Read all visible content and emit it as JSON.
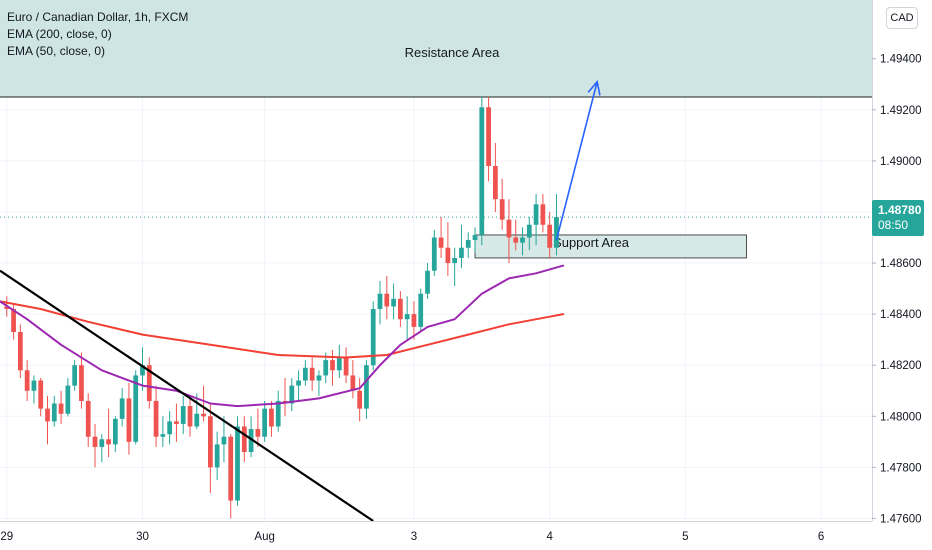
{
  "legend": {
    "symbol": "Euro / Canadian Dollar, 1h, FXCM",
    "ema200": "EMA (200, close, 0)",
    "ema50": "EMA (50, close, 0)"
  },
  "currency_button": "CAD",
  "last_price": {
    "price": "1.48780",
    "countdown": "08:50"
  },
  "colors": {
    "up": "#26a69a",
    "down": "#ef5350",
    "ema200": "#f23f34",
    "ema50": "#9c27b0",
    "zone_fill": "#cfe5e3",
    "trendline": "#000000",
    "arrow": "#2962ff",
    "last_price_line": "#26a69a"
  },
  "chart_data": {
    "type": "candlestick",
    "symbol": "EURCAD",
    "timeframe": "1h",
    "ylim": [
      1.4759,
      1.4963
    ],
    "y_ticks": [
      "1.49400",
      "1.49200",
      "1.49000",
      "1.48800",
      "1.48600",
      "1.48400",
      "1.48200",
      "1.48000",
      "1.47800",
      "1.47600"
    ],
    "y_tick_values": [
      1.494,
      1.492,
      1.49,
      1.488,
      1.486,
      1.484,
      1.482,
      1.48,
      1.478,
      1.476
    ],
    "x_ticks": [
      {
        "label": "29",
        "bar": 0
      },
      {
        "label": "30",
        "bar": 20
      },
      {
        "label": "Aug",
        "bar": 38
      },
      {
        "label": "3",
        "bar": 60
      },
      {
        "label": "4",
        "bar": 80
      },
      {
        "label": "5",
        "bar": 100
      },
      {
        "label": "6",
        "bar": 120
      }
    ],
    "x_range_bars": [
      -1.0,
      127.5
    ],
    "last_price": 1.4878,
    "candles": [
      [
        1.4843,
        1.4847,
        1.4839,
        1.4842
      ],
      [
        1.4842,
        1.4844,
        1.483,
        1.4833
      ],
      [
        1.4833,
        1.4836,
        1.4815,
        1.4818
      ],
      [
        1.4818,
        1.4822,
        1.4806,
        1.481
      ],
      [
        1.481,
        1.4816,
        1.4805,
        1.4814
      ],
      [
        1.4814,
        1.4815,
        1.48,
        1.4803
      ],
      [
        1.4803,
        1.4808,
        1.4789,
        1.4798
      ],
      [
        1.4798,
        1.4808,
        1.4796,
        1.4805
      ],
      [
        1.4805,
        1.481,
        1.4797,
        1.4801
      ],
      [
        1.4801,
        1.4815,
        1.48,
        1.4812
      ],
      [
        1.4812,
        1.4822,
        1.481,
        1.482
      ],
      [
        1.482,
        1.4825,
        1.4803,
        1.4806
      ],
      [
        1.4806,
        1.4809,
        1.4788,
        1.4792
      ],
      [
        1.4792,
        1.4797,
        1.478,
        1.4788
      ],
      [
        1.4788,
        1.4793,
        1.4782,
        1.4791
      ],
      [
        1.4791,
        1.4803,
        1.4784,
        1.4789
      ],
      [
        1.4789,
        1.48,
        1.4786,
        1.4799
      ],
      [
        1.4799,
        1.4811,
        1.4796,
        1.4807
      ],
      [
        1.4807,
        1.4813,
        1.4785,
        1.479
      ],
      [
        1.479,
        1.4818,
        1.4789,
        1.4816
      ],
      [
        1.4816,
        1.4827,
        1.481,
        1.482
      ],
      [
        1.482,
        1.4823,
        1.4803,
        1.4806
      ],
      [
        1.4806,
        1.4812,
        1.4788,
        1.4792
      ],
      [
        1.4792,
        1.48,
        1.4788,
        1.4793
      ],
      [
        1.4793,
        1.4802,
        1.4789,
        1.4798
      ],
      [
        1.4798,
        1.4805,
        1.479,
        1.4797
      ],
      [
        1.4797,
        1.4808,
        1.4793,
        1.4804
      ],
      [
        1.4804,
        1.4807,
        1.4792,
        1.4796
      ],
      [
        1.4796,
        1.4809,
        1.4795,
        1.4801
      ],
      [
        1.4801,
        1.4812,
        1.4798,
        1.48
      ],
      [
        1.48,
        1.4805,
        1.477,
        1.478
      ],
      [
        1.478,
        1.4794,
        1.4775,
        1.4789
      ],
      [
        1.4789,
        1.48,
        1.4782,
        1.4792
      ],
      [
        1.4792,
        1.4793,
        1.476,
        1.4767
      ],
      [
        1.4767,
        1.48,
        1.4765,
        1.4796
      ],
      [
        1.4796,
        1.48,
        1.4782,
        1.4786
      ],
      [
        1.4786,
        1.48,
        1.4784,
        1.4795
      ],
      [
        1.4795,
        1.4803,
        1.4788,
        1.4792
      ],
      [
        1.4792,
        1.4806,
        1.479,
        1.4803
      ],
      [
        1.4803,
        1.4806,
        1.4792,
        1.4796
      ],
      [
        1.4796,
        1.481,
        1.4794,
        1.4806
      ],
      [
        1.4806,
        1.4815,
        1.48,
        1.4805
      ],
      [
        1.4805,
        1.4815,
        1.4802,
        1.4812
      ],
      [
        1.4812,
        1.4818,
        1.4806,
        1.4814
      ],
      [
        1.4814,
        1.4822,
        1.4812,
        1.4819
      ],
      [
        1.4819,
        1.4823,
        1.481,
        1.4814
      ],
      [
        1.4814,
        1.4818,
        1.4808,
        1.4816
      ],
      [
        1.4816,
        1.4825,
        1.4813,
        1.4822
      ],
      [
        1.4822,
        1.4826,
        1.4812,
        1.4818
      ],
      [
        1.4818,
        1.4828,
        1.4815,
        1.4823
      ],
      [
        1.4823,
        1.4827,
        1.4813,
        1.4816
      ],
      [
        1.4816,
        1.4822,
        1.4807,
        1.481
      ],
      [
        1.481,
        1.4815,
        1.4798,
        1.4803
      ],
      [
        1.4803,
        1.4822,
        1.4799,
        1.482
      ],
      [
        1.482,
        1.4845,
        1.4818,
        1.4842
      ],
      [
        1.4842,
        1.4853,
        1.4836,
        1.4848
      ],
      [
        1.4848,
        1.4855,
        1.4838,
        1.4843
      ],
      [
        1.4843,
        1.4852,
        1.4838,
        1.4846
      ],
      [
        1.4846,
        1.4849,
        1.4835,
        1.4838
      ],
      [
        1.4838,
        1.4847,
        1.483,
        1.484
      ],
      [
        1.484,
        1.4845,
        1.483,
        1.4835
      ],
      [
        1.4835,
        1.485,
        1.4833,
        1.4848
      ],
      [
        1.4848,
        1.486,
        1.4846,
        1.4857
      ],
      [
        1.4857,
        1.4873,
        1.4855,
        1.487
      ],
      [
        1.487,
        1.4878,
        1.4862,
        1.4866
      ],
      [
        1.4866,
        1.4876,
        1.4855,
        1.486
      ],
      [
        1.486,
        1.4866,
        1.4851,
        1.4862
      ],
      [
        1.4862,
        1.4875,
        1.4858,
        1.4866
      ],
      [
        1.4866,
        1.4872,
        1.4862,
        1.4869
      ],
      [
        1.4869,
        1.4874,
        1.4864,
        1.4871
      ],
      [
        1.4871,
        1.4925,
        1.4867,
        1.4921
      ],
      [
        1.4921,
        1.4925,
        1.4892,
        1.4898
      ],
      [
        1.4898,
        1.4907,
        1.488,
        1.4885
      ],
      [
        1.4885,
        1.4893,
        1.4873,
        1.4877
      ],
      [
        1.4877,
        1.4885,
        1.486,
        1.487
      ],
      [
        1.487,
        1.4877,
        1.4865,
        1.4868
      ],
      [
        1.4868,
        1.4874,
        1.4863,
        1.487
      ],
      [
        1.487,
        1.4878,
        1.4865,
        1.4875
      ],
      [
        1.4875,
        1.4887,
        1.4867,
        1.4883
      ],
      [
        1.4883,
        1.4887,
        1.4872,
        1.4875
      ],
      [
        1.4875,
        1.488,
        1.4862,
        1.4866
      ],
      [
        1.4866,
        1.4887,
        1.4863,
        1.4878
      ]
    ],
    "series": [
      {
        "name": "EMA (200, close, 0)",
        "color": "#f23f34",
        "points": [
          [
            -1,
            1.4845
          ],
          [
            5,
            1.4842
          ],
          [
            12,
            1.4837
          ],
          [
            20,
            1.4832
          ],
          [
            30,
            1.4828
          ],
          [
            40,
            1.4824
          ],
          [
            50,
            1.4823
          ],
          [
            56,
            1.4824
          ],
          [
            62,
            1.4828
          ],
          [
            68,
            1.4832
          ],
          [
            74,
            1.4836
          ],
          [
            80,
            1.4839
          ],
          [
            82,
            1.484
          ]
        ]
      },
      {
        "name": "EMA (50, close, 0)",
        "color": "#9c27b0",
        "points": [
          [
            -1,
            1.4845
          ],
          [
            3,
            1.4838
          ],
          [
            8,
            1.4828
          ],
          [
            14,
            1.4818
          ],
          [
            20,
            1.4812
          ],
          [
            25,
            1.481
          ],
          [
            30,
            1.4805
          ],
          [
            34,
            1.4804
          ],
          [
            40,
            1.4805
          ],
          [
            46,
            1.4807
          ],
          [
            52,
            1.4811
          ],
          [
            55,
            1.482
          ],
          [
            58,
            1.4828
          ],
          [
            62,
            1.4835
          ],
          [
            66,
            1.4838
          ],
          [
            70,
            1.4848
          ],
          [
            74,
            1.4854
          ],
          [
            78,
            1.4856
          ],
          [
            82,
            1.4859
          ]
        ]
      }
    ],
    "annotations": [
      {
        "type": "zone",
        "label": "Resistance  Area",
        "y1": 1.4963,
        "y2": 1.4925,
        "x1": -1.0,
        "x2": 127.5
      },
      {
        "type": "zone",
        "label": "Support Area",
        "y1": 1.4871,
        "y2": 1.4862,
        "x1": 69,
        "x2": 109
      },
      {
        "type": "trendline",
        "points": [
          [
            -1,
            1.4857
          ],
          [
            54,
            1.4759
          ]
        ]
      },
      {
        "type": "arrow",
        "points": [
          [
            81,
            1.4869
          ],
          [
            87,
            1.4931
          ]
        ]
      }
    ]
  }
}
